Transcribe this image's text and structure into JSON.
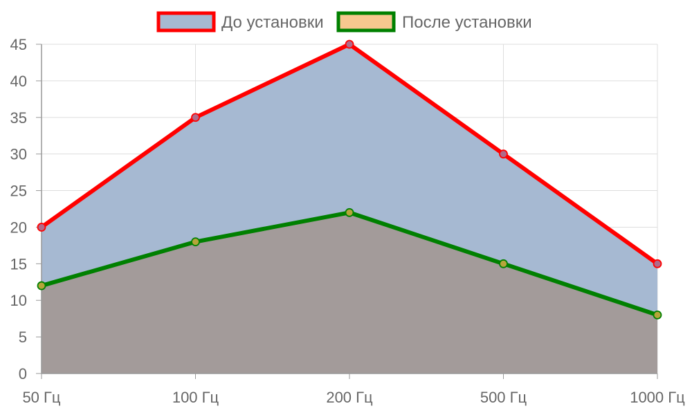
{
  "chart_data": {
    "type": "area",
    "title": "",
    "xlabel": "",
    "ylabel": "",
    "categories": [
      "50 Гц",
      "100 Гц",
      "200 Гц",
      "500 Гц",
      "1000 Гц"
    ],
    "ylim": [
      0,
      45
    ],
    "yticks": [
      0,
      5,
      10,
      15,
      20,
      25,
      30,
      35,
      40,
      45
    ],
    "grid": true,
    "legend_position": "top-center",
    "series": [
      {
        "name": "До установки",
        "values": [
          20,
          35,
          45,
          30,
          15
        ],
        "line_color": "#ff0000",
        "fill_color": "#a6b9d2",
        "legend_fill": "#a6b9d2"
      },
      {
        "name": "После установки",
        "values": [
          12,
          18,
          22,
          15,
          8
        ],
        "line_color": "#008000",
        "fill_color": "#a39b9a",
        "legend_fill": "#f6c88f"
      }
    ]
  }
}
